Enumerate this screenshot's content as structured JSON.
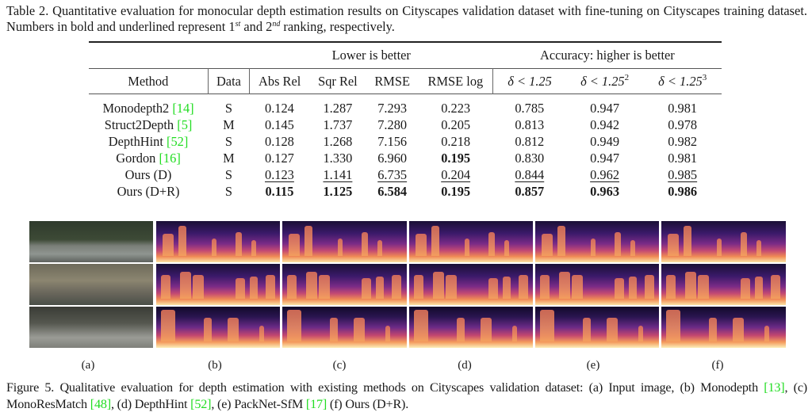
{
  "table": {
    "caption_prefix": "Table 2. Quantitative evaluation for monocular depth estimation results on Cityscapes validation dataset with fine-tuning on Cityscapes training dataset. Numbers in bold and underlined represent 1",
    "caption_sup1": "st",
    "caption_mid": " and 2",
    "caption_sup2": "nd",
    "caption_suffix": " ranking, respectively.",
    "group_lower": "Lower is better",
    "group_accuracy": "Accuracy: higher is better",
    "columns": {
      "method": "Method",
      "data": "Data",
      "abs_rel": "Abs Rel",
      "sqr_rel": "Sqr Rel",
      "rmse": "RMSE",
      "rmse_log": "RMSE log",
      "delta1": "δ < 1.25",
      "delta2_base": "δ < 1.25",
      "delta2_exp": "2",
      "delta3_base": "δ < 1.25",
      "delta3_exp": "3"
    },
    "rows": [
      {
        "method": "Monodepth2 ",
        "cite": "[14]",
        "data": "S",
        "abs_rel": "0.124",
        "sqr_rel": "1.287",
        "rmse": "7.293",
        "rmse_log": "0.223",
        "d1": "0.785",
        "d2": "0.947",
        "d3": "0.981"
      },
      {
        "method": "Struct2Depth ",
        "cite": "[5]",
        "data": "M",
        "abs_rel": "0.145",
        "sqr_rel": "1.737",
        "rmse": "7.280",
        "rmse_log": "0.205",
        "d1": "0.813",
        "d2": "0.942",
        "d3": "0.978"
      },
      {
        "method": "DepthHint ",
        "cite": "[52]",
        "data": "S",
        "abs_rel": "0.128",
        "sqr_rel": "1.268",
        "rmse": "7.156",
        "rmse_log": "0.218",
        "d1": "0.812",
        "d2": "0.949",
        "d3": "0.982"
      },
      {
        "method": "Gordon ",
        "cite": "[16]",
        "data": "M",
        "abs_rel": "0.127",
        "sqr_rel": "1.330",
        "rmse": "6.960",
        "rmse_log": "0.195",
        "d1": "0.830",
        "d2": "0.947",
        "d3": "0.981"
      },
      {
        "method": "Ours (D)",
        "cite": "",
        "data": "S",
        "abs_rel": "0.123",
        "sqr_rel": "1.141",
        "rmse": "6.735",
        "rmse_log": "0.204",
        "d1": "0.844",
        "d2": "0.962",
        "d3": "0.985"
      },
      {
        "method": "Ours (D+R)",
        "cite": "",
        "data": "S",
        "abs_rel": "0.115",
        "sqr_rel": "1.125",
        "rmse": "6.584",
        "rmse_log": "0.195",
        "d1": "0.857",
        "d2": "0.963",
        "d3": "0.986"
      }
    ],
    "emphasis": {
      "best": "bold",
      "second": "underline"
    }
  },
  "figure": {
    "panel_labels": [
      "(a)",
      "(b)",
      "(c)",
      "(d)",
      "(e)",
      "(f)"
    ],
    "panels": [
      {
        "label": "(a)",
        "content": "Input image"
      },
      {
        "label": "(b)",
        "content": "Monodepth"
      },
      {
        "label": "(c)",
        "content": "MonoResMatch"
      },
      {
        "label": "(d)",
        "content": "DepthHint"
      },
      {
        "label": "(e)",
        "content": "PackNet-SfM"
      },
      {
        "label": "(f)",
        "content": "Ours (D+R)"
      }
    ],
    "caption_parts": {
      "p1": "Figure 5. Qualitative evaluation for depth estimation with existing methods on Cityscapes validation dataset: (a) Input image, (b) Monodepth ",
      "c1": "[13]",
      "p2": ", (c) MonoResMatch ",
      "c2": "[48]",
      "p3": ", (d) DepthHint ",
      "c3": "[52]",
      "p4": ", (e) PackNet-SfM ",
      "c4": "[17]",
      "p5": " (f) Ours (D+R)."
    }
  },
  "colors": {
    "citation": "#22dd22",
    "text": "#1a1a1a"
  }
}
